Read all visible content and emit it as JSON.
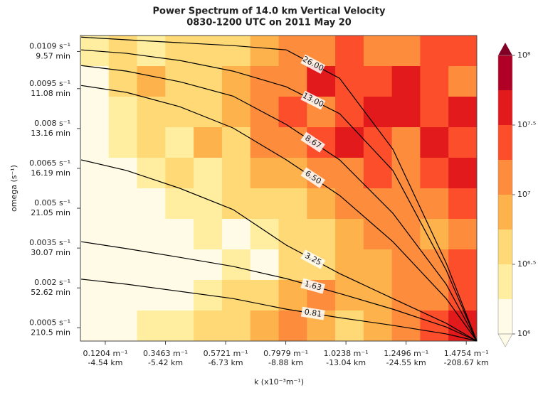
{
  "chart_data": {
    "type": "contour",
    "title": "Power Spectrum of 14.0 km Vertical Velocity",
    "subtitle": "0830-1200 UTC on 2011 May 20",
    "x_label": "k (x10⁻³m⁻¹)",
    "y_label": "omega (s⁻¹)",
    "xlim": [
      0.027,
      1.515
    ],
    "ylim": [
      0,
      0.0115
    ],
    "xticks": [
      {
        "value": 0.1204,
        "label": "0.1204 m⁻¹",
        "sublabel": "-4.54 km"
      },
      {
        "value": 0.3463,
        "label": "0.3463 m⁻¹",
        "sublabel": "-5.42 km"
      },
      {
        "value": 0.5721,
        "label": "0.5721 m⁻¹",
        "sublabel": "-6.73 km"
      },
      {
        "value": 0.7979,
        "label": "0.7979 m⁻¹",
        "sublabel": "-8.88 km"
      },
      {
        "value": 1.0238,
        "label": "1.0238 m⁻¹",
        "sublabel": "-13.04 km"
      },
      {
        "value": 1.2496,
        "label": "1.2496 m⁻¹",
        "sublabel": "-24.55 km"
      },
      {
        "value": 1.4754,
        "label": "1.4754 m⁻¹",
        "sublabel": "-208.67 km"
      }
    ],
    "yticks": [
      {
        "value": 0.0109,
        "label": "0.0109 s⁻¹",
        "sublabel": "9.57 min"
      },
      {
        "value": 0.0095,
        "label": "0.0095 s⁻¹",
        "sublabel": "11.08 min"
      },
      {
        "value": 0.008,
        "label": "0.008 s⁻¹",
        "sublabel": "13.16 min"
      },
      {
        "value": 0.0065,
        "label": "0.0065 s⁻¹",
        "sublabel": "16.19 min"
      },
      {
        "value": 0.005,
        "label": "0.005 s⁻¹",
        "sublabel": "21.05 min"
      },
      {
        "value": 0.0035,
        "label": "0.0035 s⁻¹",
        "sublabel": "30.07 min"
      },
      {
        "value": 0.002,
        "label": "0.002 s⁻¹",
        "sublabel": "52.62 min"
      },
      {
        "value": 0.0005,
        "label": "0.0005 s⁻¹",
        "sublabel": "210.5 min"
      }
    ],
    "z": [
      [
        6.3,
        6.5,
        6.4,
        6.6,
        6.5,
        6.7,
        6.8,
        7.0,
        7.1,
        7.3,
        7.2,
        7.0,
        7.3,
        7.4
      ],
      [
        6.2,
        6.6,
        6.8,
        6.5,
        6.7,
        6.9,
        7.0,
        7.2,
        7.6,
        7.4,
        7.3,
        7.5,
        7.4,
        7.2
      ],
      [
        6.1,
        6.4,
        6.5,
        6.7,
        6.6,
        6.9,
        7.1,
        7.3,
        7.2,
        7.4,
        7.7,
        7.6,
        7.3,
        7.6
      ],
      [
        6.0,
        6.3,
        6.6,
        6.4,
        6.8,
        6.7,
        7.0,
        7.1,
        7.4,
        7.5,
        7.3,
        7.2,
        7.5,
        7.3
      ],
      [
        6.0,
        6.2,
        6.3,
        6.5,
        6.4,
        6.6,
        6.8,
        6.9,
        7.0,
        7.2,
        7.4,
        7.1,
        7.3,
        7.5
      ],
      [
        6.0,
        6.0,
        6.2,
        6.4,
        6.3,
        6.5,
        6.6,
        6.7,
        6.9,
        7.0,
        7.2,
        7.0,
        7.2,
        7.3
      ],
      [
        6.0,
        6.1,
        6.0,
        6.2,
        6.3,
        6.1,
        6.4,
        6.6,
        6.7,
        6.8,
        7.0,
        7.1,
        6.9,
        7.2
      ],
      [
        6.0,
        6.0,
        6.1,
        6.0,
        6.2,
        6.3,
        6.2,
        6.5,
        6.6,
        6.9,
        6.8,
        7.0,
        7.1,
        7.3
      ],
      [
        6.0,
        6.1,
        6.0,
        6.2,
        6.4,
        6.5,
        6.7,
        6.9,
        7.0,
        6.8,
        6.9,
        7.1,
        7.2,
        7.4
      ],
      [
        6.0,
        6.2,
        6.3,
        6.4,
        6.6,
        6.7,
        6.9,
        7.0,
        6.9,
        6.7,
        6.8,
        7.0,
        7.3,
        7.5
      ]
    ],
    "levels": [
      6,
      6.25,
      6.5,
      6.75,
      7,
      7.25,
      7.5,
      7.75,
      8
    ],
    "level_colors": [
      "#fffbe6",
      "#ffeda0",
      "#fed976",
      "#feb24c",
      "#fd8d3c",
      "#fc4e2a",
      "#e31a1c",
      "#b10026"
    ],
    "extend_color": "#800026",
    "colorbar_ticks": [
      {
        "value": 6,
        "label": "10⁶"
      },
      {
        "value": 6.5,
        "label": "10⁶·⁵"
      },
      {
        "value": 7,
        "label": "10⁷"
      },
      {
        "value": 7.5,
        "label": "10⁷·⁵"
      },
      {
        "value": 8,
        "label": "10⁸"
      }
    ],
    "x": [
      0.03,
      0.2,
      0.4,
      0.6,
      0.8,
      1.0,
      1.2,
      1.4,
      1.515
    ],
    "series": [
      {
        "name": "26.00",
        "color": "#000000",
        "values": [
          0.01144,
          0.01134,
          0.01123,
          0.01112,
          0.01096,
          0.00989,
          0.00722,
          0.00294,
          0
        ]
      },
      {
        "name": "13.00",
        "color": "#000000",
        "values": [
          0.01096,
          0.01083,
          0.01056,
          0.01016,
          0.00957,
          0.00856,
          0.00642,
          0.00267,
          0
        ]
      },
      {
        "name": "8.67",
        "color": "#000000",
        "values": [
          0.01037,
          0.01016,
          0.00976,
          0.00922,
          0.00815,
          0.00682,
          0.00481,
          0.00214,
          0
        ]
      },
      {
        "name": "6.50",
        "color": "#000000",
        "values": [
          0.00962,
          0.00936,
          0.00882,
          0.00802,
          0.00682,
          0.00548,
          0.00374,
          0.0016,
          0
        ]
      },
      {
        "name": "3.25",
        "color": "#000000",
        "values": [
          0.00682,
          0.00642,
          0.00575,
          0.00495,
          0.00361,
          0.00254,
          0.0016,
          0.00067,
          0
        ]
      },
      {
        "name": "1.63",
        "color": "#000000",
        "values": [
          0.00374,
          0.00348,
          0.00315,
          0.00281,
          0.00235,
          0.00179,
          0.0012,
          0.00053,
          0
        ]
      },
      {
        "name": "0.81",
        "color": "#000000",
        "values": [
          0.00233,
          0.00214,
          0.00187,
          0.0016,
          0.0012,
          0.00088,
          0.00059,
          0.00027,
          0
        ]
      }
    ]
  }
}
